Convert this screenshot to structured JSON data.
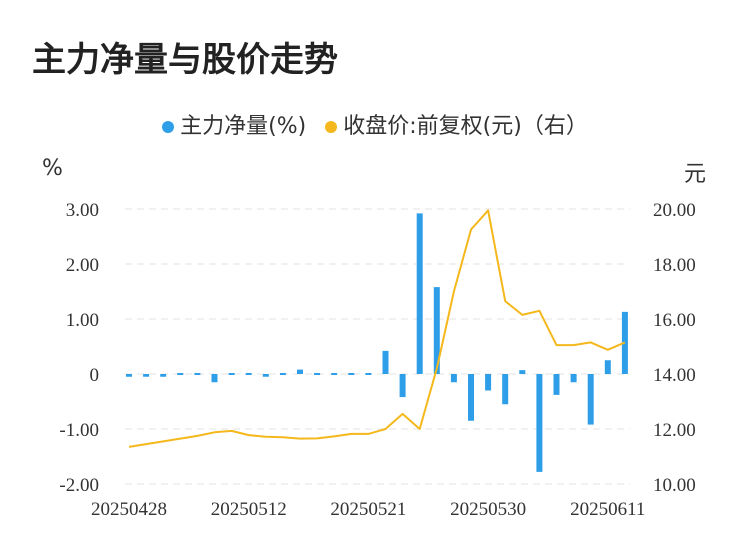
{
  "title": "主力净量与股价走势",
  "legend": {
    "bar_label": "主力净量(%)",
    "line_label": "收盘价:前复权(元)（右）"
  },
  "units": {
    "left": "%",
    "right": "元"
  },
  "colors": {
    "bar": "#2e9ee8",
    "line": "#f5b81c",
    "grid": "#e3e3e3",
    "text": "#333333"
  },
  "chart_data": {
    "type": "bar+line",
    "x": [
      "20250428",
      "20250429",
      "20250430",
      "20250506",
      "20250507",
      "20250508",
      "20250509",
      "20250512",
      "20250513",
      "20250514",
      "20250515",
      "20250516",
      "20250519",
      "20250520",
      "20250521",
      "20250522",
      "20250523",
      "20250526",
      "20250527",
      "20250528",
      "20250529",
      "20250530",
      "20250603",
      "20250604",
      "20250605",
      "20250606",
      "20250609",
      "20250610",
      "20250611",
      "20250612"
    ],
    "x_tick_labels": [
      "20250428",
      "20250512",
      "20250521",
      "20250530",
      "20250611"
    ],
    "x_tick_indices": [
      0,
      7,
      14,
      21,
      28
    ],
    "series": [
      {
        "name": "主力净量(%)",
        "type": "bar",
        "axis": "left",
        "values": [
          -0.05,
          -0.05,
          -0.05,
          0,
          0.03,
          -0.15,
          -0.03,
          -0.03,
          -0.05,
          0.02,
          0.08,
          0.01,
          0.01,
          0.01,
          0.01,
          0.42,
          -0.42,
          2.92,
          1.58,
          -0.15,
          -0.85,
          -0.3,
          -0.55,
          0.07,
          -1.78,
          -0.38,
          -0.15,
          -0.92,
          0.25,
          1.13
        ]
      },
      {
        "name": "收盘价:前复权(元)（右）",
        "type": "line",
        "axis": "right",
        "values": [
          11.35,
          11.45,
          11.55,
          11.65,
          11.75,
          11.88,
          11.93,
          11.78,
          11.72,
          11.7,
          11.65,
          11.66,
          11.73,
          11.82,
          11.82,
          12.0,
          12.55,
          12.0,
          14.2,
          17.0,
          19.25,
          19.95,
          16.65,
          16.15,
          16.3,
          15.05,
          15.05,
          15.15,
          14.88,
          15.15
        ]
      }
    ],
    "y_left": {
      "ticks": [
        "3.00",
        "2.00",
        "1.00",
        "0",
        "-1.00",
        "-2.00"
      ],
      "range": [
        -2,
        3
      ]
    },
    "y_right": {
      "ticks": [
        "20.00",
        "18.00",
        "16.00",
        "14.00",
        "12.00",
        "10.00"
      ],
      "range": [
        10,
        20
      ]
    },
    "grid": true,
    "legend_position": "top"
  }
}
